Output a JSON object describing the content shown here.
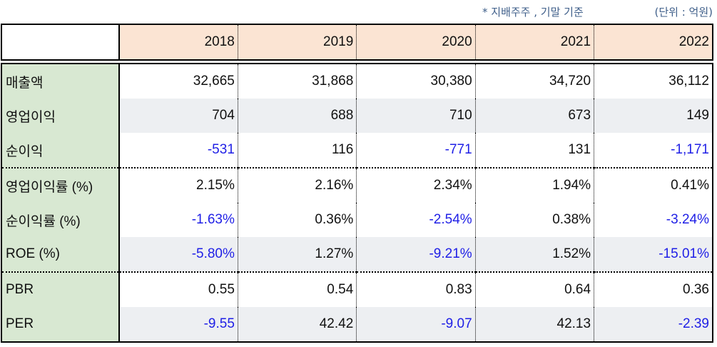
{
  "note": "* 지배주주 , 기말 기준",
  "unit": "(단위 : 억원)",
  "years": [
    "2018",
    "2019",
    "2020",
    "2021",
    "2022"
  ],
  "rows": [
    {
      "label": "매출액",
      "values": [
        "32,665",
        "31,868",
        "30,380",
        "34,720",
        "36,112"
      ]
    },
    {
      "label": "영업이익",
      "values": [
        "704",
        "688",
        "710",
        "673",
        "149"
      ]
    },
    {
      "label": "순이익",
      "values": [
        "-531",
        "116",
        "-771",
        "131",
        "-1,171"
      ]
    },
    {
      "label": "영업이익률 (%)",
      "values": [
        "2.15%",
        "2.16%",
        "2.34%",
        "1.94%",
        "0.41%"
      ]
    },
    {
      "label": "순이익률 (%)",
      "values": [
        "-1.63%",
        "0.36%",
        "-2.54%",
        "0.38%",
        "-3.24%"
      ]
    },
    {
      "label": "ROE (%)",
      "values": [
        "-5.80%",
        "1.27%",
        "-9.21%",
        "1.52%",
        "-15.01%"
      ]
    },
    {
      "label": "PBR",
      "values": [
        "0.55",
        "0.54",
        "0.83",
        "0.64",
        "0.36"
      ]
    },
    {
      "label": "PER",
      "values": [
        "-9.55",
        "42.42",
        "-9.07",
        "42.13",
        "-2.39"
      ]
    }
  ],
  "colors": {
    "header_bg": "#fbe4d3",
    "label_bg": "#d8e8d2",
    "shade_bg": "#edeff2",
    "negative": "#1f1fe6"
  }
}
